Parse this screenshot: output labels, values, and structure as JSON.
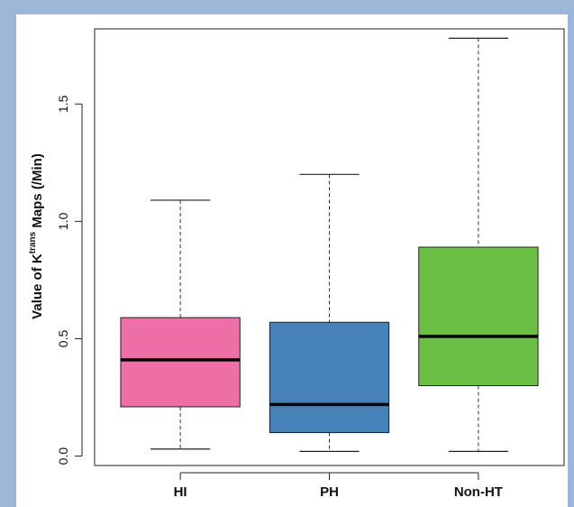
{
  "chart_data": {
    "type": "box",
    "categories": [
      "HI",
      "PH",
      "Non-HT"
    ],
    "boxes": [
      {
        "category": "HI",
        "min": 0.03,
        "q1": 0.21,
        "median": 0.41,
        "q3": 0.59,
        "max": 1.09,
        "color": "#ee6fa5"
      },
      {
        "category": "PH",
        "min": 0.02,
        "q1": 0.1,
        "median": 0.22,
        "q3": 0.57,
        "max": 1.2,
        "color": "#4682b8"
      },
      {
        "category": "Non-HT",
        "min": 0.02,
        "q1": 0.3,
        "median": 0.51,
        "q3": 0.89,
        "max": 1.78,
        "color": "#6cbf45"
      }
    ],
    "ylabel_prefix": "Value of K",
    "ylabel_sup": "trans",
    "ylabel_suffix": " Maps (/Min)",
    "yticks": [
      "0.0",
      "0.5",
      "1.0",
      "1.5"
    ],
    "ytick_values": [
      0.0,
      0.5,
      1.0,
      1.5
    ],
    "ylim": [
      -0.04,
      1.82
    ],
    "grid": false
  }
}
